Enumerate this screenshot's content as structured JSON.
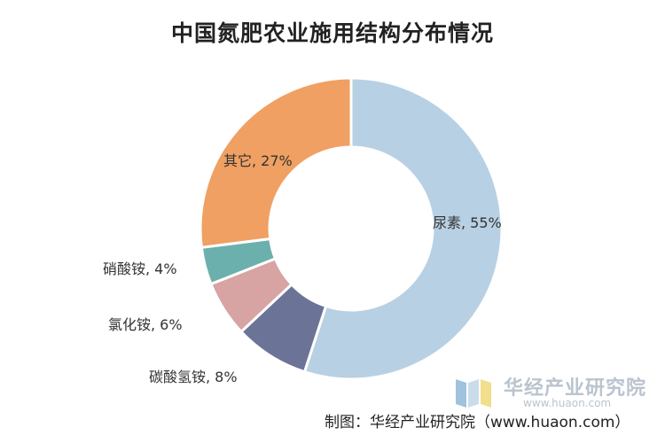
{
  "colors": {
    "background": "#ffffff",
    "slices": [
      "#b8d0e3",
      "#6b7397",
      "#d8a3a3",
      "#6bb0ac",
      "#f0a062"
    ]
  },
  "chart_data": {
    "type": "pie",
    "variant": "donut",
    "title": "中国氮肥农业施用结构分布情况",
    "start_angle_deg": 0,
    "direction": "clockwise",
    "legend": "none",
    "categories": [
      "尿素",
      "碳酸氢铵",
      "氯化铵",
      "硝酸铵",
      "其它"
    ],
    "values": [
      55,
      8,
      6,
      4,
      27
    ],
    "unit": "%",
    "labels": [
      "尿素, 55%",
      "碳酸氢铵, 8%",
      "氯化铵, 6%",
      "硝酸铵, 4%",
      "其它, 27%"
    ]
  },
  "watermark": {
    "name": "华经产业研究院",
    "url": "www.huaon.com"
  },
  "source": "制图：华经产业研究院（www.huaon.com）"
}
